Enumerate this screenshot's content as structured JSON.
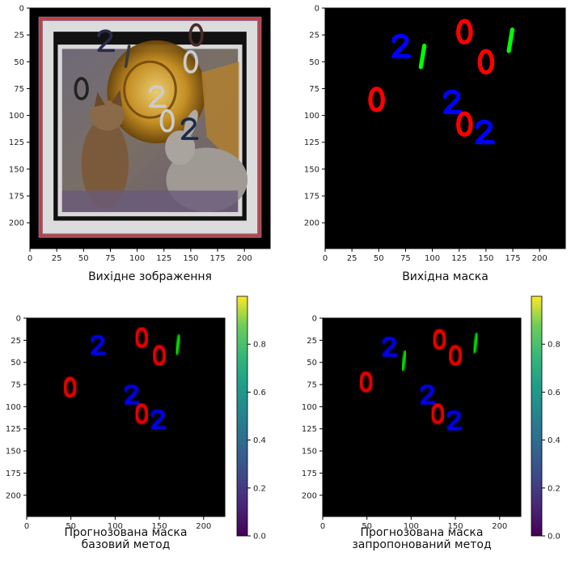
{
  "chart_data": [
    {
      "type": "heatmap",
      "title": "",
      "caption": "Вихідне зображення",
      "caption_lines": [
        "Вихідне зображення"
      ],
      "image": "source-photo-cat-rabbit-horn",
      "x_ticks": [
        0,
        25,
        50,
        75,
        100,
        125,
        150,
        175,
        200
      ],
      "y_ticks": [
        0,
        25,
        50,
        75,
        100,
        125,
        150,
        175,
        200
      ],
      "xlim": [
        0,
        224
      ],
      "ylim": [
        224,
        0
      ],
      "digits": [
        {
          "label": "2",
          "x": 70,
          "y": 30,
          "color": "#2a2a4a"
        },
        {
          "label": "0",
          "x": 155,
          "y": 25,
          "color": "#4a2a2a"
        },
        {
          "label": "1",
          "x": 92,
          "y": 45,
          "color": "#3a3a3a"
        },
        {
          "label": "0",
          "x": 150,
          "y": 50,
          "color": "#cccccc"
        },
        {
          "label": "0",
          "x": 48,
          "y": 75,
          "color": "#222222"
        },
        {
          "label": "2",
          "x": 118,
          "y": 82,
          "color": "#cccccc"
        },
        {
          "label": "0",
          "x": 128,
          "y": 105,
          "color": "#cccccc"
        },
        {
          "label": "2",
          "x": 148,
          "y": 112,
          "color": "#1a2a4a"
        }
      ]
    },
    {
      "type": "heatmap",
      "title": "",
      "caption": "Вихідна маска",
      "caption_lines": [
        "Вихідна маска"
      ],
      "x_ticks": [
        0,
        25,
        50,
        75,
        100,
        125,
        150,
        175,
        200
      ],
      "y_ticks": [
        0,
        25,
        50,
        75,
        100,
        125,
        150,
        175,
        200
      ],
      "xlim": [
        0,
        224
      ],
      "ylim": [
        224,
        0
      ],
      "digits": [
        {
          "label": "2",
          "x": 70,
          "y": 35,
          "color": "#0000ff"
        },
        {
          "label": "0",
          "x": 130,
          "y": 22,
          "color": "#ff0000"
        },
        {
          "label": "1",
          "x": 92,
          "y": 45,
          "color": "#00ff00"
        },
        {
          "label": "0",
          "x": 150,
          "y": 50,
          "color": "#ff0000"
        },
        {
          "label": "1",
          "x": 174,
          "y": 30,
          "color": "#00ff00"
        },
        {
          "label": "0",
          "x": 48,
          "y": 85,
          "color": "#ff0000"
        },
        {
          "label": "2",
          "x": 118,
          "y": 87,
          "color": "#0000ff"
        },
        {
          "label": "0",
          "x": 130,
          "y": 108,
          "color": "#ff0000"
        },
        {
          "label": "2",
          "x": 148,
          "y": 115,
          "color": "#0000ff"
        }
      ]
    },
    {
      "type": "heatmap",
      "title": "",
      "caption": "Прогнозована маска базовий метод",
      "caption_lines": [
        "Прогнозована маска",
        "базовий метод"
      ],
      "x_ticks": [
        0,
        50,
        100,
        150,
        200
      ],
      "y_ticks": [
        0,
        25,
        50,
        75,
        100,
        125,
        150,
        175,
        200
      ],
      "xlim": [
        0,
        224
      ],
      "ylim": [
        224,
        0
      ],
      "colorbar": {
        "ticks": [
          0.0,
          0.2,
          0.4,
          0.6,
          0.8
        ],
        "range": [
          0,
          1
        ],
        "colormap": "viridis"
      },
      "digits": [
        {
          "label": "2",
          "x": 80,
          "y": 30,
          "color": "#0000ff"
        },
        {
          "label": "0",
          "x": 130,
          "y": 22,
          "color": "#ff0000"
        },
        {
          "label": "0",
          "x": 150,
          "y": 42,
          "color": "#ff0000"
        },
        {
          "label": "1",
          "x": 172,
          "y": 30,
          "color": "#00ee00"
        },
        {
          "label": "0",
          "x": 49,
          "y": 78,
          "color": "#ff0000"
        },
        {
          "label": "2",
          "x": 118,
          "y": 86,
          "color": "#0000ff"
        },
        {
          "label": "0",
          "x": 130,
          "y": 108,
          "color": "#ff0000"
        },
        {
          "label": "2",
          "x": 148,
          "y": 114,
          "color": "#0000ff"
        }
      ]
    },
    {
      "type": "heatmap",
      "title": "",
      "caption": "Прогнозована маска запропонований метод",
      "caption_lines": [
        "Прогнозована маска",
        "запропонований метод"
      ],
      "x_ticks": [
        0,
        50,
        100,
        150,
        200
      ],
      "y_ticks": [
        0,
        25,
        50,
        75,
        100,
        125,
        150,
        175,
        200
      ],
      "xlim": [
        0,
        224
      ],
      "ylim": [
        224,
        0
      ],
      "colorbar": {
        "ticks": [
          0.0,
          0.2,
          0.4,
          0.6,
          0.8
        ],
        "range": [
          0,
          1
        ],
        "colormap": "viridis"
      },
      "digits": [
        {
          "label": "2",
          "x": 75,
          "y": 32,
          "color": "#0000ff"
        },
        {
          "label": "1",
          "x": 93,
          "y": 48,
          "color": "#00ee00"
        },
        {
          "label": "0",
          "x": 132,
          "y": 24,
          "color": "#ff0000"
        },
        {
          "label": "0",
          "x": 150,
          "y": 42,
          "color": "#ff0000"
        },
        {
          "label": "1",
          "x": 174,
          "y": 28,
          "color": "#00ee00"
        },
        {
          "label": "0",
          "x": 49,
          "y": 72,
          "color": "#ff0000"
        },
        {
          "label": "2",
          "x": 118,
          "y": 86,
          "color": "#0000ff"
        },
        {
          "label": "0",
          "x": 130,
          "y": 108,
          "color": "#ff0000"
        },
        {
          "label": "2",
          "x": 148,
          "y": 115,
          "color": "#0000ff"
        }
      ]
    }
  ]
}
